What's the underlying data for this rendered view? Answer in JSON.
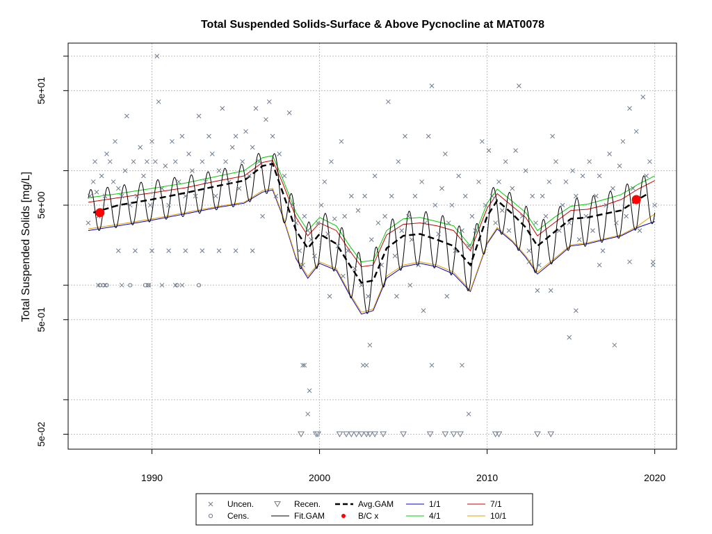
{
  "chart_data": {
    "type": "scatter",
    "title": "Total Suspended Solids-Surface & Above Pycnocline at MAT0078",
    "ylabel": "Total Suspended Solids [mg/L]",
    "xlabel": "",
    "y_scale": "log10",
    "xlim": [
      1985.0,
      2021.3
    ],
    "ylim": [
      0.037,
      130
    ],
    "x_ticks": [
      1990,
      2000,
      2010,
      2020
    ],
    "x_tick_labels": [
      "1990",
      "2000",
      "2010",
      "2020"
    ],
    "y_ticks": [
      0.05,
      0.5,
      5,
      50
    ],
    "y_tick_labels": [
      "5e-02",
      "5e-01",
      "5e+00",
      "5e+01"
    ],
    "y_minor_ticks": [
      0.1,
      1,
      10,
      100
    ],
    "grid": true,
    "legend_position": "bottom",
    "colors": {
      "points": "#6e7b8b",
      "avg_gam": "#000000",
      "fit_gam": "#000000",
      "bc": "#ff0000",
      "p1_1": "#0000cc",
      "p4_1": "#00cc00",
      "p7_1": "#cc0000",
      "p10_1": "#e6a000"
    },
    "legend": [
      {
        "label": "Uncen.",
        "symbol": "x",
        "key": "points"
      },
      {
        "label": "Cens.",
        "symbol": "circle",
        "key": "points"
      },
      {
        "label": "Recen.",
        "symbol": "triangle-down",
        "key": "points"
      },
      {
        "label": "Fit.GAM",
        "symbol": "line",
        "key": "fit_gam"
      },
      {
        "label": "Avg.GAM",
        "symbol": "dashed",
        "key": "avg_gam"
      },
      {
        "label": "B/C x",
        "symbol": "dot",
        "key": "bc"
      },
      {
        "label": "1/1",
        "symbol": "line",
        "key": "p1_1"
      },
      {
        "label": "4/1",
        "symbol": "line",
        "key": "p4_1"
      },
      {
        "label": "7/1",
        "symbol": "line",
        "key": "p7_1"
      },
      {
        "label": "10/1",
        "symbol": "line",
        "key": "p10_1"
      }
    ],
    "avg_gam": {
      "x": [
        1986.5,
        1988,
        1990,
        1992,
        1994,
        1995.5,
        1996.6,
        1997.2,
        1997.8,
        1998.6,
        1999.3,
        2000,
        2001,
        2001.8,
        2002.5,
        2003.2,
        2004,
        2005,
        2006,
        2007,
        2008,
        2009,
        2010,
        2010.6,
        2011.5,
        2012.3,
        2013,
        2014,
        2015,
        2016,
        2017,
        2018,
        2019,
        2019.6
      ],
      "y": [
        4.3,
        5.0,
        5.6,
        6.4,
        7.4,
        8.2,
        11.0,
        11.5,
        6.5,
        3.0,
        2.1,
        2.8,
        2.3,
        1.5,
        1.05,
        1.1,
        2.1,
        2.7,
        2.8,
        2.5,
        2.2,
        1.5,
        4.0,
        5.5,
        4.2,
        3.2,
        2.2,
        2.9,
        3.8,
        3.9,
        4.2,
        4.5,
        5.6,
        6.3
      ]
    },
    "fit_gam_upper": {
      "x": [
        1986.2,
        1988,
        1990,
        1992,
        1994,
        1995.5,
        1996.6,
        1997.2,
        1997.8,
        1998.6,
        1999.3,
        2000,
        2001,
        2001.8,
        2002.5,
        2003.2,
        2004,
        2005,
        2006,
        2007,
        2008,
        2009,
        2010,
        2010.6,
        2011.5,
        2012.3,
        2013,
        2014,
        2015,
        2016,
        2017,
        2018,
        2019,
        2020
      ],
      "y": [
        6.8,
        7.4,
        8.2,
        9.0,
        10.2,
        11.5,
        15.0,
        15.5,
        10.0,
        5.0,
        3.5,
        4.5,
        3.8,
        2.5,
        1.8,
        1.9,
        3.5,
        4.4,
        4.5,
        4.2,
        3.8,
        2.5,
        6.0,
        8.0,
        6.2,
        5.0,
        3.4,
        4.5,
        5.7,
        5.9,
        6.4,
        7.1,
        8.8,
        9.5
      ]
    },
    "fit_gam_lower": {
      "x": [
        1986.2,
        1988,
        1990,
        1992,
        1994,
        1995.5,
        1996.6,
        1997.2,
        1997.8,
        1998.6,
        1999.3,
        2000,
        2001,
        2001.8,
        2002.5,
        2003.2,
        2004,
        2005,
        2006,
        2007,
        2008,
        2009,
        2010,
        2010.6,
        2011.5,
        2012.3,
        2013,
        2014,
        2015,
        2016,
        2017,
        2018,
        2019,
        2020
      ],
      "y": [
        2.9,
        3.2,
        3.6,
        4.0,
        4.6,
        5.0,
        6.2,
        6.5,
        3.8,
        1.6,
        1.1,
        1.5,
        1.3,
        0.8,
        0.55,
        0.58,
        1.1,
        1.4,
        1.5,
        1.4,
        1.2,
        0.85,
        2.2,
        3.0,
        2.3,
        1.7,
        1.2,
        1.6,
        2.1,
        2.2,
        2.4,
        2.6,
        3.1,
        3.5
      ]
    },
    "percentiles": {
      "x": [
        1986.2,
        1988,
        1990,
        1992,
        1994,
        1995.5,
        1996.6,
        1997.2,
        1997.8,
        1998.6,
        1999.3,
        2000,
        2001,
        2001.8,
        2002.5,
        2003.2,
        2004,
        2005,
        2006,
        2007,
        2008,
        2009,
        2010,
        2010.6,
        2011.5,
        2012.3,
        2013,
        2014,
        2015,
        2016,
        2017,
        2018,
        2019,
        2020
      ],
      "p1_1": [
        3.0,
        3.3,
        3.7,
        4.2,
        4.8,
        5.2,
        6.5,
        6.8,
        4.0,
        1.7,
        1.15,
        1.55,
        1.35,
        0.82,
        0.56,
        0.6,
        1.15,
        1.45,
        1.55,
        1.45,
        1.25,
        0.88,
        2.3,
        3.1,
        2.4,
        1.75,
        1.25,
        1.65,
        2.2,
        2.3,
        2.5,
        2.7,
        3.2,
        3.6
      ],
      "p4_1": [
        5.8,
        6.3,
        7.0,
        7.8,
        9.0,
        10.0,
        13.0,
        13.5,
        8.5,
        4.3,
        3.0,
        3.9,
        3.3,
        2.2,
        1.6,
        1.65,
        3.0,
        3.8,
        3.9,
        3.6,
        3.3,
        2.2,
        5.2,
        6.9,
        5.4,
        4.3,
        3.0,
        3.9,
        4.9,
        5.1,
        5.6,
        6.2,
        7.6,
        9.0
      ],
      "p7_1": [
        5.3,
        5.8,
        6.4,
        7.1,
        8.2,
        9.0,
        11.8,
        12.3,
        7.8,
        3.9,
        2.7,
        3.5,
        3.0,
        2.0,
        1.45,
        1.5,
        2.75,
        3.4,
        3.5,
        3.3,
        3.0,
        2.0,
        4.7,
        6.3,
        4.9,
        3.9,
        2.7,
        3.5,
        4.5,
        4.6,
        5.0,
        5.6,
        6.9,
        8.2
      ],
      "p10_1": [
        3.1,
        3.4,
        3.8,
        4.3,
        4.9,
        5.3,
        6.7,
        7.0,
        4.1,
        1.75,
        1.2,
        1.6,
        1.4,
        0.85,
        0.58,
        0.62,
        1.2,
        1.5,
        1.6,
        1.5,
        1.3,
        0.9,
        2.35,
        3.2,
        2.45,
        1.8,
        1.3,
        1.7,
        2.25,
        2.35,
        2.55,
        2.75,
        3.3,
        4.2
      ]
    },
    "bc_points": [
      {
        "x": 1986.9,
        "y": 4.3
      },
      {
        "x": 2018.9,
        "y": 5.6
      }
    ],
    "uncensored": [
      [
        1986.2,
        3.5
      ],
      [
        1986.3,
        6.0
      ],
      [
        1986.5,
        8.0
      ],
      [
        1986.6,
        12.0
      ],
      [
        1986.7,
        6.5
      ],
      [
        1986.8,
        4.0
      ],
      [
        1987.0,
        9.0
      ],
      [
        1987.2,
        6.0
      ],
      [
        1987.3,
        14.0
      ],
      [
        1987.5,
        12.0
      ],
      [
        1987.7,
        8.0
      ],
      [
        1987.8,
        18.0
      ],
      [
        1988.0,
        7.0
      ],
      [
        1988.2,
        6.0
      ],
      [
        1988.4,
        10.0
      ],
      [
        1988.5,
        30.0
      ],
      [
        1988.7,
        5.0
      ],
      [
        1988.9,
        12.0
      ],
      [
        1989.1,
        6.0
      ],
      [
        1989.3,
        16.0
      ],
      [
        1989.5,
        9.0
      ],
      [
        1989.7,
        12.0
      ],
      [
        1989.9,
        5.0
      ],
      [
        1990.0,
        18.0
      ],
      [
        1990.2,
        12.0
      ],
      [
        1990.3,
        100.0
      ],
      [
        1990.4,
        40.0
      ],
      [
        1990.6,
        7.0
      ],
      [
        1990.8,
        11.0
      ],
      [
        1991.0,
        5.0
      ],
      [
        1991.2,
        18.0
      ],
      [
        1991.4,
        12.0
      ],
      [
        1991.6,
        8.0
      ],
      [
        1991.8,
        20.0
      ],
      [
        1992.0,
        6.0
      ],
      [
        1992.2,
        14.0
      ],
      [
        1992.4,
        10.0
      ],
      [
        1992.6,
        6.0
      ],
      [
        1992.8,
        30.0
      ],
      [
        1993.0,
        12.0
      ],
      [
        1993.2,
        8.0
      ],
      [
        1993.4,
        20.0
      ],
      [
        1993.6,
        14.0
      ],
      [
        1993.8,
        6.0
      ],
      [
        1994.0,
        10.0
      ],
      [
        1994.2,
        35.0
      ],
      [
        1994.4,
        12.0
      ],
      [
        1994.6,
        8.0
      ],
      [
        1994.8,
        16.0
      ],
      [
        1995.0,
        20.0
      ],
      [
        1995.2,
        7.0
      ],
      [
        1995.4,
        12.0
      ],
      [
        1995.6,
        22.0
      ],
      [
        1995.8,
        9.0
      ],
      [
        1996.0,
        16.0
      ],
      [
        1996.2,
        35.0
      ],
      [
        1996.4,
        12.0
      ],
      [
        1996.6,
        4.0
      ],
      [
        1996.8,
        28.0
      ],
      [
        1997.0,
        40.0
      ],
      [
        1997.2,
        20.0
      ],
      [
        1997.4,
        6.0
      ],
      [
        1997.6,
        14.0
      ],
      [
        1997.9,
        9.0
      ],
      [
        1998.2,
        32.0
      ],
      [
        1998.4,
        5.0
      ],
      [
        1998.6,
        3.5
      ],
      [
        1998.8,
        2.0
      ],
      [
        1999.0,
        1.5
      ],
      [
        1999.1,
        4.0
      ],
      [
        1999.3,
        3.0
      ],
      [
        1999.5,
        2.5
      ],
      [
        1999.7,
        1.8
      ],
      [
        1999.9,
        3.5
      ],
      [
        2000.1,
        5.0
      ],
      [
        2000.3,
        8.0
      ],
      [
        2000.5,
        2.8
      ],
      [
        2000.7,
        12.0
      ],
      [
        2000.9,
        3.8
      ],
      [
        2001.1,
        2.2
      ],
      [
        2001.3,
        18.0
      ],
      [
        2001.5,
        4.0
      ],
      [
        2001.7,
        2.0
      ],
      [
        2001.9,
        6.0
      ],
      [
        2002.1,
        1.4
      ],
      [
        2002.3,
        4.5
      ],
      [
        2002.5,
        1.0
      ],
      [
        2002.7,
        6.0
      ],
      [
        2002.9,
        0.8
      ],
      [
        2003.1,
        2.5
      ],
      [
        2003.3,
        9.0
      ],
      [
        2003.5,
        3.5
      ],
      [
        2003.7,
        1.5
      ],
      [
        2003.9,
        4.0
      ],
      [
        2004.1,
        40.0
      ],
      [
        2004.3,
        6.0
      ],
      [
        2004.5,
        1.8
      ],
      [
        2004.7,
        12.0
      ],
      [
        2004.9,
        3.0
      ],
      [
        2005.1,
        20.0
      ],
      [
        2005.3,
        4.0
      ],
      [
        2005.5,
        2.5
      ],
      [
        2005.7,
        6.0
      ],
      [
        2005.9,
        1.5
      ],
      [
        2006.1,
        8.0
      ],
      [
        2006.3,
        3.5
      ],
      [
        2006.5,
        20.0
      ],
      [
        2006.7,
        55.0
      ],
      [
        2006.9,
        5.0
      ],
      [
        2007.1,
        2.8
      ],
      [
        2007.3,
        7.0
      ],
      [
        2007.5,
        14.0
      ],
      [
        2007.7,
        3.5
      ],
      [
        2007.9,
        5.0
      ],
      [
        2008.1,
        2.0
      ],
      [
        2008.3,
        9.0
      ],
      [
        2008.5,
        3.0
      ],
      [
        2008.7,
        6.0
      ],
      [
        2008.9,
        2.2
      ],
      [
        2009.1,
        4.0
      ],
      [
        2009.3,
        3.0
      ],
      [
        2009.5,
        8.0
      ],
      [
        2009.7,
        18.0
      ],
      [
        2009.9,
        5.0
      ],
      [
        2010.1,
        15.0
      ],
      [
        2010.3,
        6.0
      ],
      [
        2010.5,
        3.5
      ],
      [
        2010.7,
        8.0
      ],
      [
        2010.9,
        4.5
      ],
      [
        2011.1,
        12.0
      ],
      [
        2011.3,
        3.0
      ],
      [
        2011.5,
        7.0
      ],
      [
        2011.7,
        15.0
      ],
      [
        2011.9,
        55.0
      ],
      [
        2012.1,
        4.0
      ],
      [
        2012.3,
        10.0
      ],
      [
        2012.5,
        2.0
      ],
      [
        2012.7,
        6.0
      ],
      [
        2012.9,
        3.5
      ],
      [
        2013.1,
        1.5
      ],
      [
        2013.3,
        6.0
      ],
      [
        2013.5,
        4.0
      ],
      [
        2013.7,
        8.0
      ],
      [
        2013.9,
        20.0
      ],
      [
        2014.1,
        12.0
      ],
      [
        2014.3,
        3.0
      ],
      [
        2014.5,
        5.0
      ],
      [
        2014.7,
        8.0
      ],
      [
        2014.9,
        3.5
      ],
      [
        2015.1,
        10.0
      ],
      [
        2015.3,
        6.0
      ],
      [
        2015.5,
        2.5
      ],
      [
        2015.7,
        9.0
      ],
      [
        2015.9,
        4.0
      ],
      [
        2016.1,
        12.0
      ],
      [
        2016.3,
        3.0
      ],
      [
        2016.5,
        6.0
      ],
      [
        2016.7,
        9.0
      ],
      [
        2016.9,
        2.0
      ],
      [
        2017.1,
        5.0
      ],
      [
        2017.3,
        14.0
      ],
      [
        2017.5,
        7.0
      ],
      [
        2017.7,
        3.5
      ],
      [
        2017.9,
        11.0
      ],
      [
        2018.1,
        18.0
      ],
      [
        2018.3,
        4.0
      ],
      [
        2018.5,
        35.0
      ],
      [
        2018.7,
        7.0
      ],
      [
        2018.9,
        22.0
      ],
      [
        2019.1,
        3.0
      ],
      [
        2019.3,
        44.0
      ],
      [
        2019.5,
        9.0
      ],
      [
        2019.7,
        12.0
      ],
      [
        2019.9,
        1.5
      ],
      [
        2020.0,
        5.0
      ],
      [
        1999.0,
        0.2
      ],
      [
        1999.1,
        0.2
      ],
      [
        1999.3,
        0.075
      ],
      [
        1999.4,
        0.12
      ],
      [
        2002.6,
        0.2
      ],
      [
        2002.8,
        0.2
      ],
      [
        2003.0,
        0.3
      ],
      [
        2006.7,
        0.2
      ],
      [
        2008.5,
        0.2
      ],
      [
        2008.9,
        0.075
      ],
      [
        2013.0,
        0.9
      ],
      [
        2013.8,
        0.9
      ],
      [
        2014.9,
        0.35
      ],
      [
        2017.6,
        0.3
      ],
      [
        2015.3,
        0.6
      ],
      [
        2016.7,
        1.5
      ],
      [
        1986.8,
        1.0
      ],
      [
        1987.2,
        1.0
      ],
      [
        1988.2,
        1.0
      ],
      [
        1989.8,
        1.0
      ],
      [
        1990.6,
        1.0
      ],
      [
        1991.4,
        1.0
      ],
      [
        1991.8,
        1.0
      ],
      [
        1988.0,
        2.0
      ],
      [
        1989.0,
        2.0
      ],
      [
        1990.0,
        2.0
      ],
      [
        1991.0,
        2.0
      ],
      [
        1992.0,
        2.0
      ],
      [
        1993.0,
        2.0
      ],
      [
        1994.0,
        2.0
      ],
      [
        1995.0,
        2.0
      ],
      [
        1996.0,
        2.0
      ],
      [
        2000.6,
        0.8
      ],
      [
        2001.4,
        1.2
      ],
      [
        2004.6,
        0.8
      ],
      [
        2005.4,
        1.0
      ],
      [
        2006.2,
        0.6
      ],
      [
        2007.6,
        0.8
      ],
      [
        2012.5,
        1.6
      ],
      [
        2018.5,
        1.6
      ],
      [
        2019.9,
        1.6
      ]
    ],
    "censored": [
      [
        1986.9,
        1.0
      ],
      [
        1987.1,
        1.0
      ],
      [
        1987.3,
        1.0
      ],
      [
        1988.7,
        1.0
      ],
      [
        1989.6,
        1.0
      ],
      [
        1989.8,
        1.0
      ],
      [
        1991.5,
        1.0
      ],
      [
        1992.8,
        1.0
      ]
    ],
    "recensored": [
      [
        1998.9,
        0.05
      ],
      [
        1999.8,
        0.05
      ],
      [
        1999.9,
        0.05
      ],
      [
        2001.2,
        0.05
      ],
      [
        2001.6,
        0.05
      ],
      [
        2001.9,
        0.05
      ],
      [
        2002.2,
        0.05
      ],
      [
        2002.5,
        0.05
      ],
      [
        2002.8,
        0.05
      ],
      [
        2003.0,
        0.05
      ],
      [
        2003.3,
        0.05
      ],
      [
        2003.8,
        0.05
      ],
      [
        2005.0,
        0.05
      ],
      [
        2006.6,
        0.05
      ],
      [
        2007.5,
        0.05
      ],
      [
        2008.0,
        0.05
      ],
      [
        2008.4,
        0.05
      ],
      [
        2010.5,
        0.05
      ],
      [
        2010.7,
        0.05
      ],
      [
        2013.0,
        0.05
      ],
      [
        2013.8,
        0.05
      ]
    ]
  }
}
